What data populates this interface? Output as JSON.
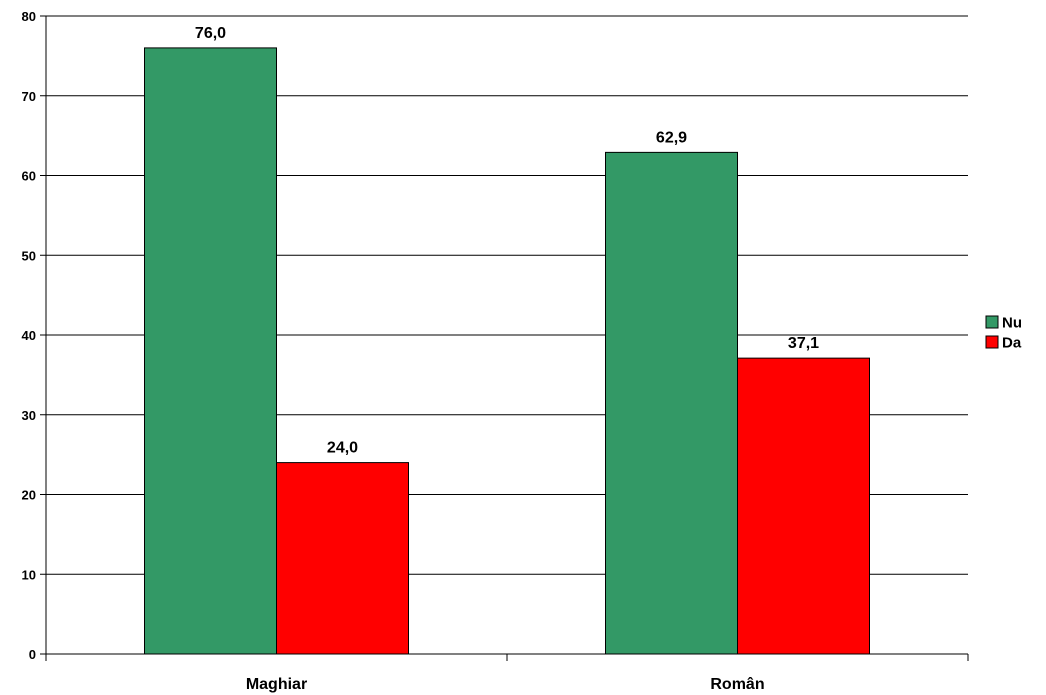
{
  "chart_data": {
    "type": "bar",
    "title": "",
    "xlabel": "",
    "ylabel": "",
    "categories": [
      "Maghiar",
      "Român"
    ],
    "series": [
      {
        "name": "Nu",
        "color": "#339966",
        "values": [
          76.0,
          62.9
        ],
        "labels": [
          "76,0",
          "62,9"
        ]
      },
      {
        "name": "Da",
        "color": "#ff0000",
        "values": [
          24.0,
          37.1
        ],
        "labels": [
          "24,0",
          "37,1"
        ]
      }
    ],
    "ylim": [
      0,
      80
    ],
    "yticks": [
      0,
      10,
      20,
      30,
      40,
      50,
      60,
      70,
      80
    ],
    "grid": true,
    "legend_position": "right"
  }
}
